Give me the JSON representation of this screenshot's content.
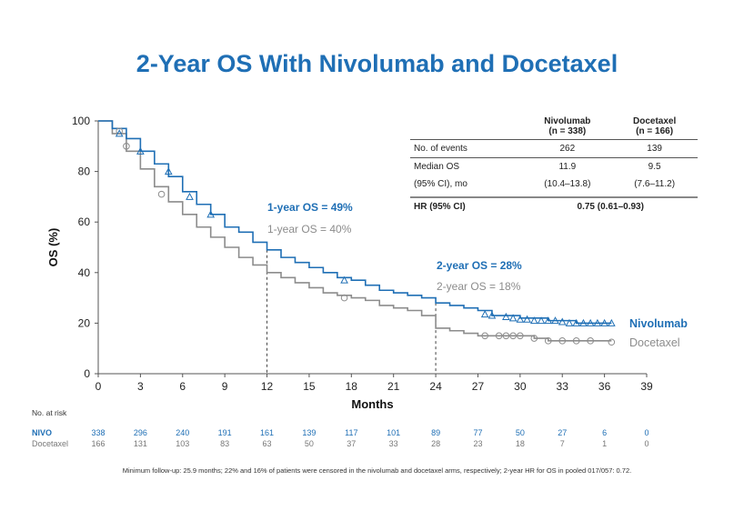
{
  "title": "2-Year OS With Nivolumab and Docetaxel",
  "chart_data": {
    "type": "line",
    "title": "2-Year OS With Nivolumab and Docetaxel",
    "xlabel": "Months",
    "ylabel": "OS (%)",
    "xlim": [
      0,
      39
    ],
    "ylim": [
      0,
      100
    ],
    "x_ticks": [
      0,
      3,
      6,
      9,
      12,
      15,
      18,
      21,
      24,
      27,
      30,
      33,
      36,
      39
    ],
    "y_ticks": [
      0,
      20,
      40,
      60,
      80,
      100
    ],
    "colors": {
      "nivo": "#1f6fb5",
      "doce": "#8c8c8c"
    },
    "series": [
      {
        "name": "Nivolumab",
        "x": [
          0,
          1,
          2,
          3,
          4,
          5,
          6,
          7,
          8,
          9,
          10,
          11,
          12,
          13,
          14,
          15,
          16,
          17,
          18,
          19,
          20,
          21,
          22,
          23,
          24,
          25,
          26,
          27,
          28,
          30,
          32,
          34,
          35,
          36.5
        ],
        "y": [
          100,
          97,
          93,
          88,
          83,
          78,
          72,
          67,
          63,
          58,
          56,
          52,
          49,
          46,
          44,
          42,
          40,
          38,
          37,
          35,
          33,
          32,
          31,
          30,
          28,
          27,
          26,
          25,
          23,
          22,
          21,
          20,
          20,
          20
        ],
        "censored": [
          [
            1.5,
            95
          ],
          [
            3,
            88
          ],
          [
            5,
            80
          ],
          [
            6.5,
            70
          ],
          [
            8,
            63
          ],
          [
            17.5,
            37
          ],
          [
            27.5,
            23.5
          ],
          [
            28,
            23
          ],
          [
            29,
            22.5
          ],
          [
            29.5,
            22
          ],
          [
            30,
            21.5
          ],
          [
            30.5,
            21.5
          ],
          [
            31,
            21
          ],
          [
            31.5,
            21
          ],
          [
            32,
            21
          ],
          [
            32.5,
            21
          ],
          [
            33,
            20.5
          ],
          [
            33.5,
            20
          ],
          [
            34,
            20
          ],
          [
            34.5,
            20
          ],
          [
            35,
            20
          ],
          [
            35.5,
            20
          ],
          [
            36,
            20
          ],
          [
            36.5,
            20
          ]
        ]
      },
      {
        "name": "Docetaxel",
        "x": [
          0,
          1,
          2,
          3,
          4,
          5,
          6,
          7,
          8,
          9,
          10,
          11,
          12,
          13,
          14,
          15,
          16,
          17,
          18,
          19,
          20,
          21,
          22,
          23,
          24,
          25,
          26,
          27,
          28,
          30,
          31,
          32,
          33,
          34,
          35,
          36,
          36.5
        ],
        "y": [
          100,
          95,
          88,
          81,
          74,
          68,
          63,
          58,
          54,
          50,
          46,
          43,
          40,
          38,
          36,
          34,
          32,
          31,
          30,
          29,
          27,
          26,
          25,
          23,
          18,
          17,
          16,
          15,
          15,
          15,
          14,
          13,
          13,
          13,
          13,
          13,
          13
        ],
        "censored": [
          [
            1.5,
            96
          ],
          [
            2,
            90
          ],
          [
            4.5,
            71
          ],
          [
            17.5,
            30
          ],
          [
            27.5,
            15
          ],
          [
            28.5,
            15
          ],
          [
            29,
            15
          ],
          [
            29.5,
            15
          ],
          [
            30,
            15
          ],
          [
            31,
            14
          ],
          [
            32,
            13
          ],
          [
            33,
            13
          ],
          [
            34,
            13
          ],
          [
            35,
            13
          ],
          [
            36.5,
            12.5
          ]
        ]
      }
    ],
    "reference_lines": [
      {
        "x": 12,
        "y_nivo": 49,
        "y_doce": 40
      },
      {
        "x": 24,
        "y_nivo": 28,
        "y_doce": 18
      }
    ],
    "annotations": [
      {
        "text": "1-year OS = 49%",
        "series": "Nivolumab"
      },
      {
        "text": "1-year OS = 40%",
        "series": "Docetaxel"
      },
      {
        "text": "2-year OS = 28%",
        "series": "Nivolumab"
      },
      {
        "text": "2-year OS = 18%",
        "series": "Docetaxel"
      }
    ],
    "end_labels": [
      "Nivolumab",
      "Docetaxel"
    ],
    "risk_table": {
      "title": "No. at risk",
      "rows": [
        {
          "label": "NIVO",
          "values": [
            "338",
            "296",
            "240",
            "191",
            "161",
            "139",
            "117",
            "101",
            "89",
            "77",
            "50",
            "27",
            "6",
            "0"
          ]
        },
        {
          "label": "Docetaxel",
          "values": [
            "166",
            "131",
            "103",
            "83",
            "63",
            "50",
            "37",
            "33",
            "28",
            "23",
            "18",
            "7",
            "1",
            "0"
          ]
        }
      ]
    }
  },
  "stats_table": {
    "col_headers": [
      "Nivolumab\n(n = 338)",
      "Docetaxel\n(n = 166)"
    ],
    "rows": [
      [
        "No. of events",
        "262",
        "139"
      ],
      [
        "Median OS",
        "11.9",
        "9.5"
      ],
      [
        "(95% CI), mo",
        "(10.4–13.8)",
        "(7.6–11.2)"
      ]
    ],
    "hr_label": "HR (95% CI)",
    "hr_value": "0.75 (0.61–0.93)"
  },
  "footnote": "Minimum  follow-up: 25.9 months; 22% and 16% of patients were censored in the nivolumab and docetaxel arms, respectively; 2-year HR for OS in pooled 017/057: 0.72."
}
